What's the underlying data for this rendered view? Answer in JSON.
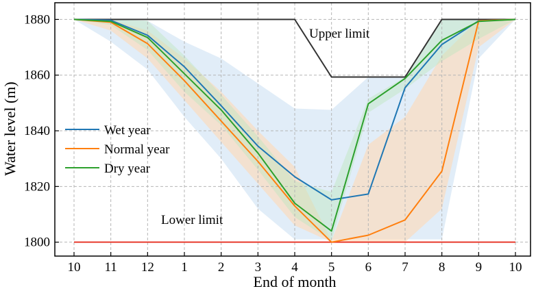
{
  "chart_data": {
    "type": "line",
    "xlabel": "End of month",
    "ylabel": "Water level (m)",
    "categories": [
      "10",
      "11",
      "12",
      "1",
      "2",
      "3",
      "4",
      "5",
      "6",
      "7",
      "8",
      "9",
      "10"
    ],
    "ylim": [
      1795,
      1886
    ],
    "yticks": [
      1800,
      1820,
      1840,
      1860,
      1880
    ],
    "grid": true,
    "legend_position": "center-left",
    "series": [
      {
        "name": "Wet year",
        "color": "#1f77b4",
        "values": [
          1880,
          1879.7,
          1874.3,
          1863,
          1849,
          1834.5,
          1823.5,
          1815.2,
          1817.3,
          1855.5,
          1871,
          1879.5,
          1880
        ],
        "band_upper": [
          1880,
          1880,
          1879.5,
          1872,
          1866,
          1857,
          1848,
          1847.5,
          1859.3,
          1859.3,
          1880,
          1880,
          1880
        ],
        "band_lower": [
          1880,
          1872,
          1862,
          1845,
          1830,
          1812,
          1801,
          1801,
          1801,
          1801,
          1801,
          1866,
          1880
        ]
      },
      {
        "name": "Normal year",
        "color": "#ff7f0e",
        "values": [
          1880,
          1879,
          1871.3,
          1858,
          1843.5,
          1829,
          1813,
          1800,
          1802.5,
          1808,
          1825.5,
          1879.5,
          1880
        ],
        "band_upper": [
          1880,
          1880,
          1876,
          1866,
          1854,
          1840,
          1827,
          1800.5,
          1835,
          1845,
          1867,
          1880,
          1880
        ],
        "band_lower": [
          1880,
          1876,
          1866,
          1851,
          1836,
          1821,
          1806,
          1800,
          1800,
          1800,
          1812,
          1870,
          1880
        ]
      },
      {
        "name": "Dry year",
        "color": "#2ca02c",
        "values": [
          1880,
          1879.3,
          1873.5,
          1860.5,
          1847.5,
          1832,
          1814,
          1804,
          1849.7,
          1858.8,
          1872.5,
          1879.3,
          1880
        ],
        "band_upper": [
          1880,
          1880,
          1879.5,
          1867,
          1853,
          1838,
          1822,
          1818,
          1851.5,
          1859.3,
          1880,
          1880,
          1880
        ],
        "band_lower": [
          1880,
          1878,
          1869,
          1854,
          1842,
          1826,
          1809,
          1800.5,
          1846.5,
          1855,
          1865,
          1873,
          1880
        ]
      }
    ],
    "reference_lines": [
      {
        "name": "Upper limit",
        "label": "Upper limit",
        "color": "#333333",
        "values": [
          1880,
          1880,
          1880,
          1880,
          1880,
          1880,
          1880,
          1859.3,
          1859.3,
          1859.3,
          1880,
          1880,
          1880
        ]
      },
      {
        "name": "Lower limit",
        "label": "Lower limit",
        "color": "#e8392b",
        "values": [
          1800,
          1800,
          1800,
          1800,
          1800,
          1800,
          1800,
          1800,
          1800,
          1800,
          1800,
          1800,
          1800
        ]
      }
    ]
  }
}
